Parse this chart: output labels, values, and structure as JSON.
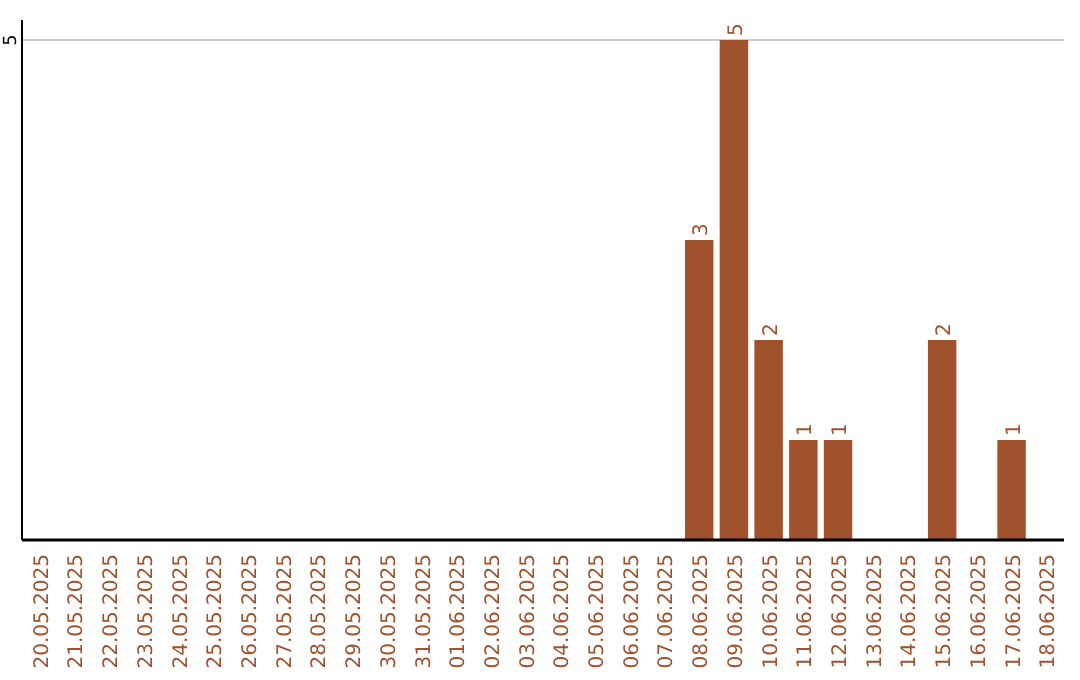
{
  "chart_data": {
    "type": "bar",
    "categories": [
      "20.05.2025",
      "21.05.2025",
      "22.05.2025",
      "23.05.2025",
      "24.05.2025",
      "25.05.2025",
      "26.05.2025",
      "27.05.2025",
      "28.05.2025",
      "29.05.2025",
      "30.05.2025",
      "31.05.2025",
      "01.06.2025",
      "02.06.2025",
      "03.06.2025",
      "04.06.2025",
      "05.06.2025",
      "06.06.2025",
      "07.06.2025",
      "08.06.2025",
      "09.06.2025",
      "10.06.2025",
      "11.06.2025",
      "12.06.2025",
      "13.06.2025",
      "14.06.2025",
      "15.06.2025",
      "16.06.2025",
      "17.06.2025",
      "18.06.2025"
    ],
    "values": [
      null,
      null,
      null,
      null,
      null,
      null,
      null,
      null,
      null,
      null,
      null,
      null,
      null,
      null,
      null,
      null,
      null,
      null,
      null,
      3,
      5,
      2,
      1,
      1,
      null,
      null,
      2,
      null,
      1,
      null
    ],
    "color": "#a0522d",
    "ylim": [
      0,
      5.2
    ],
    "yticks": [
      5
    ],
    "grid": "y",
    "data_labels": true
  }
}
